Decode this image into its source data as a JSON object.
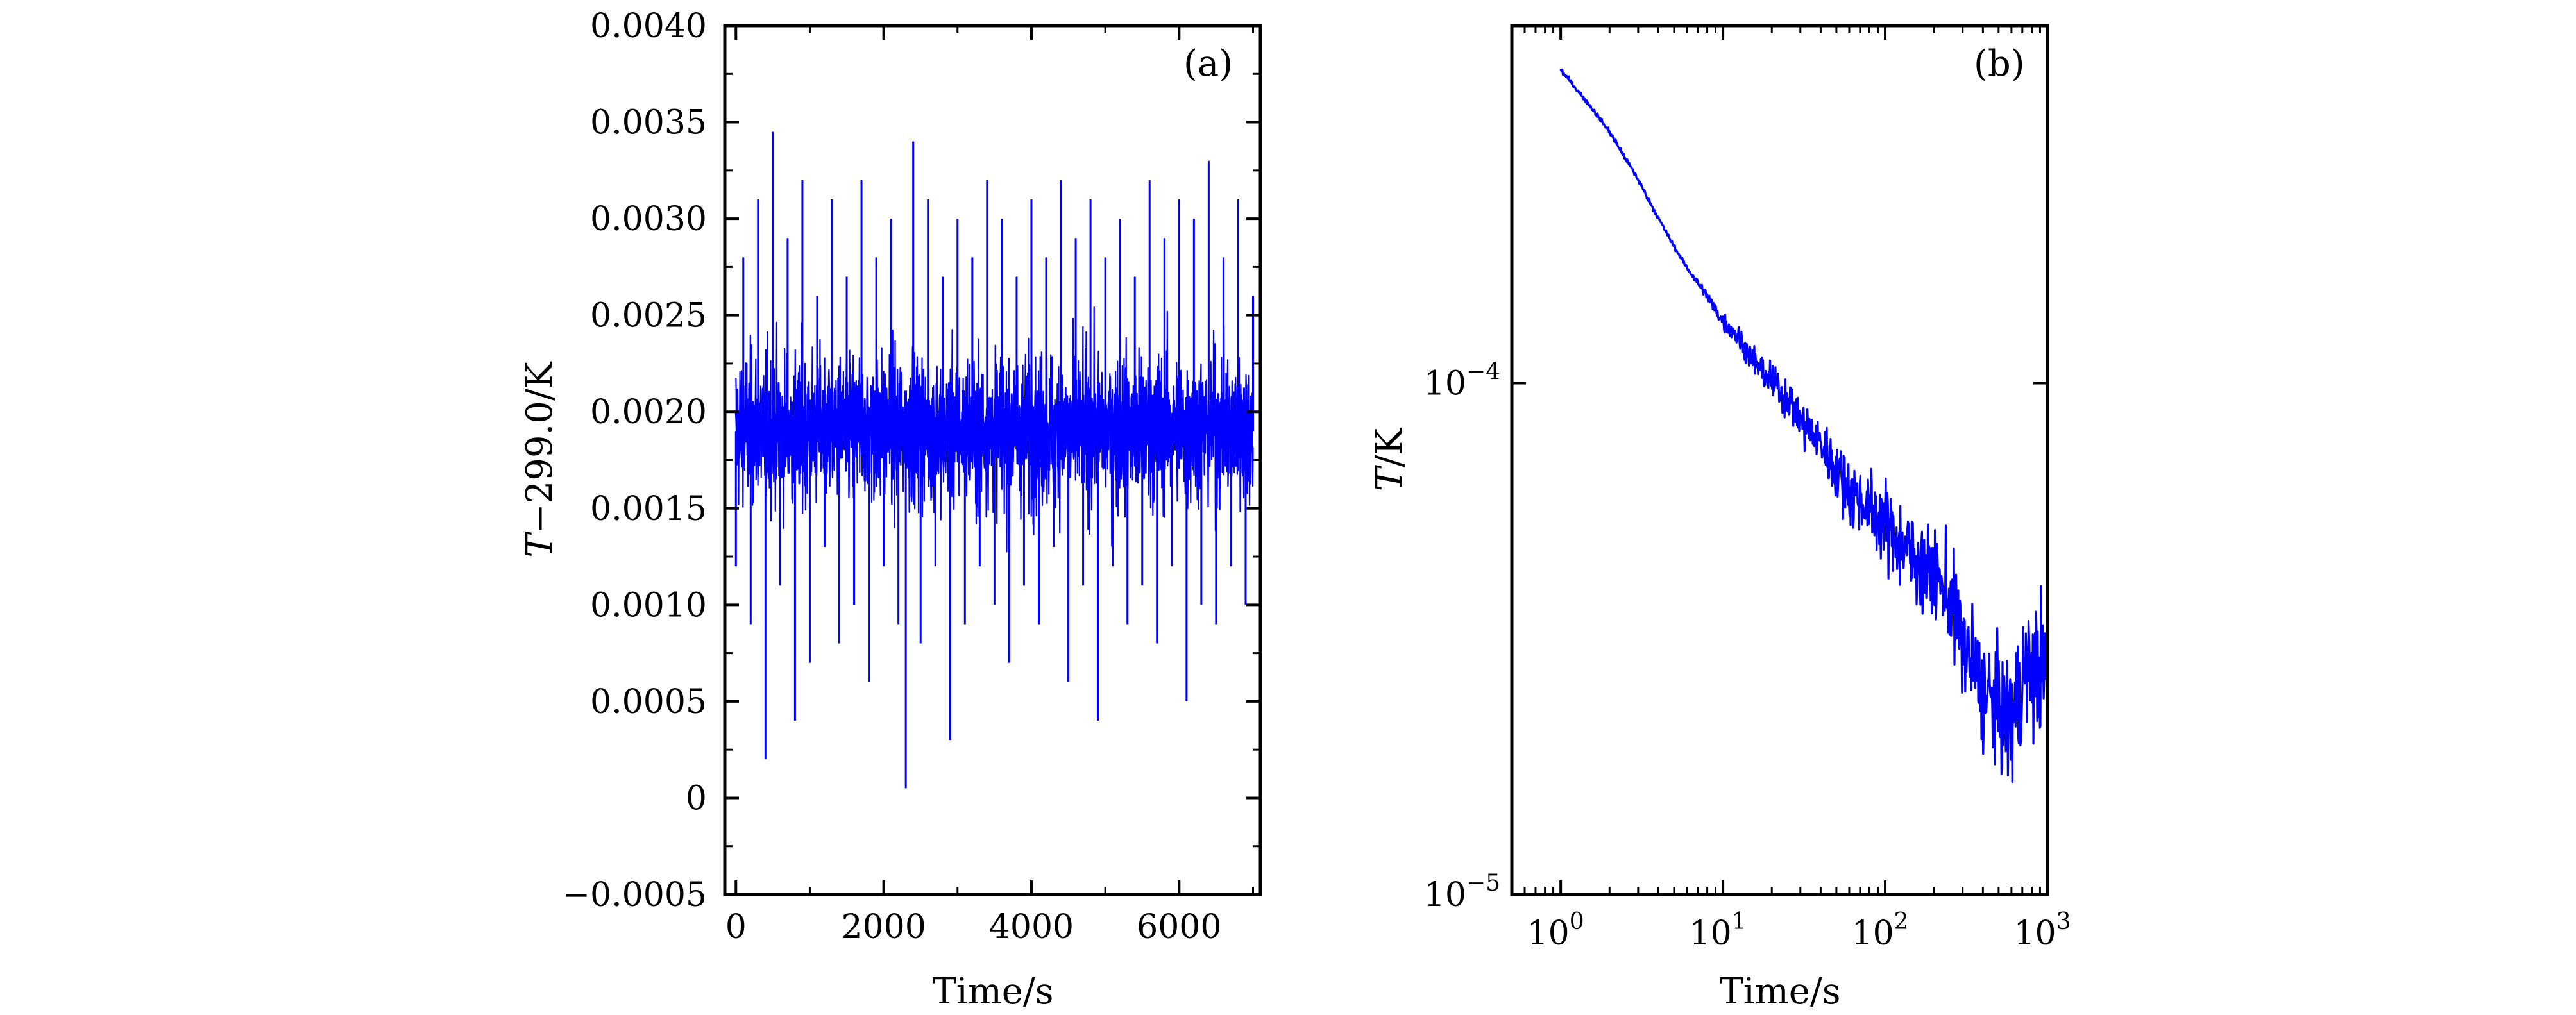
{
  "chart_data": [
    {
      "type": "line",
      "panel_label": "(a)",
      "xlabel": "Time/s",
      "ylabel": "T−299.0/K",
      "xlim": [
        -150,
        7100
      ],
      "ylim": [
        -0.0005,
        0.004
      ],
      "x_ticks": [
        0,
        2000,
        4000,
        6000
      ],
      "x_tick_labels": [
        "0",
        "2000",
        "4000",
        "6000"
      ],
      "y_ticks": [
        -0.0005,
        0,
        0.0005,
        0.001,
        0.0015,
        0.002,
        0.0025,
        0.003,
        0.0035,
        0.004
      ],
      "y_tick_labels": [
        "−0.0005",
        "0",
        "0.0005",
        "0.0010",
        "0.0015",
        "0.0020",
        "0.0025",
        "0.0030",
        "0.0035",
        "0.0040"
      ],
      "grid": false,
      "series": [
        {
          "color": "#0000ff",
          "x": [
            0,
            100,
            200,
            300,
            400,
            500,
            600,
            700,
            800,
            900,
            1000,
            1100,
            1200,
            1300,
            1400,
            1500,
            1600,
            1700,
            1800,
            1900,
            2000,
            2100,
            2200,
            2300,
            2400,
            2500,
            2600,
            2700,
            2800,
            2900,
            3000,
            3100,
            3200,
            3300,
            3400,
            3500,
            3600,
            3700,
            3800,
            3900,
            4000,
            4100,
            4200,
            4300,
            4400,
            4500,
            4600,
            4700,
            4800,
            4900,
            5000,
            5100,
            5200,
            5300,
            5400,
            5500,
            5600,
            5700,
            5800,
            5900,
            6000,
            6100,
            6200,
            6300,
            6400,
            6500,
            6600,
            6700,
            6800,
            6900,
            7000
          ],
          "y": [
            0.0012,
            0.0028,
            0.0009,
            0.0031,
            0.0002,
            0.00345,
            0.0011,
            0.0029,
            0.0004,
            0.0032,
            0.0007,
            0.0026,
            0.0013,
            0.0031,
            0.0008,
            0.0027,
            0.001,
            0.0032,
            0.0006,
            0.0028,
            0.0012,
            0.003,
            0.0009,
            5e-05,
            0.0034,
            0.0008,
            0.0031,
            0.0012,
            0.0027,
            0.0003,
            0.003,
            0.0009,
            0.0028,
            0.0012,
            0.0032,
            0.001,
            0.003,
            0.0007,
            0.0027,
            0.0011,
            0.0031,
            0.0009,
            0.0028,
            0.0013,
            0.0032,
            0.0006,
            0.0029,
            0.0011,
            0.0031,
            0.0004,
            0.0028,
            0.0012,
            0.003,
            0.0009,
            0.0027,
            0.0011,
            0.0032,
            0.0008,
            0.0029,
            0.0012,
            0.0031,
            0.0005,
            0.003,
            0.001,
            0.0033,
            0.0009,
            0.0028,
            0.0012,
            0.0031,
            0.001,
            0.0026
          ]
        }
      ]
    },
    {
      "type": "line",
      "panel_label": "(b)",
      "xlabel": "Time/s",
      "ylabel": "T/K",
      "xscale": "log",
      "yscale": "log",
      "xlim": [
        0.5,
        1000
      ],
      "ylim": [
        1e-05,
        0.0005
      ],
      "x_ticks": [
        1,
        10,
        100,
        1000
      ],
      "x_tick_labels": [
        {
          "base": "10",
          "exp": "0"
        },
        {
          "base": "10",
          "exp": "1"
        },
        {
          "base": "10",
          "exp": "2"
        },
        {
          "base": "10",
          "exp": "3"
        }
      ],
      "y_ticks": [
        1e-05,
        0.0001
      ],
      "y_tick_labels": [
        {
          "base": "10",
          "exp": "−5"
        },
        {
          "base": "10",
          "exp": "−4"
        }
      ],
      "grid": false,
      "series": [
        {
          "color": "#0000ff",
          "x": [
            1,
            1.5,
            2,
            3,
            4,
            5,
            6,
            8,
            10,
            12,
            15,
            20,
            25,
            30,
            40,
            50,
            60,
            80,
            100,
            120,
            150,
            200,
            250,
            300,
            400,
            500,
            600,
            700,
            800,
            1000
          ],
          "y": [
            0.00041,
            0.00035,
            0.00031,
            0.00025,
            0.00021,
            0.000185,
            0.000168,
            0.000148,
            0.000132,
            0.000125,
            0.000112,
            0.0001,
            9.4e-05,
            8.5e-05,
            7.6e-05,
            6.8e-05,
            6.2e-05,
            5.7e-05,
            5.3e-05,
            4.9e-05,
            4.6e-05,
            4.2e-05,
            3.8e-05,
            3.1e-05,
            2.5e-05,
            2.3e-05,
            2.2e-05,
            2.6e-05,
            2.8e-05,
            2.7e-05
          ]
        }
      ]
    }
  ]
}
